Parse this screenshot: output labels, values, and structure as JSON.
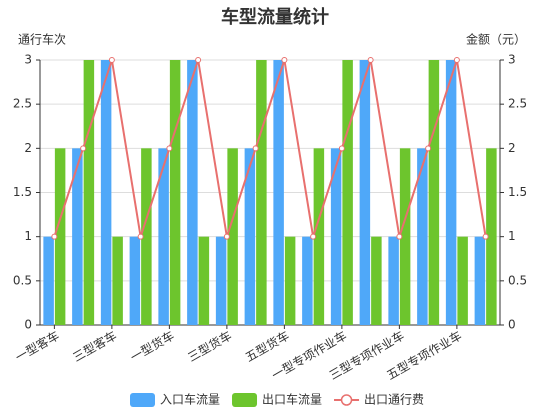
{
  "chart_data": {
    "type": "bar",
    "title": "车型流量统计",
    "y_label": "通行车次",
    "y2_label": "金额（元）",
    "categories": [
      "一型客车",
      null,
      "三型客车",
      null,
      "一型货车",
      null,
      "三型货车",
      null,
      "五型货车",
      null,
      "一型专项作业车",
      null,
      "三型专项作业车",
      null,
      "五型专项作业车",
      null
    ],
    "series": [
      {
        "name": "入口车流量",
        "type": "bar",
        "color": "#4fa8f9",
        "values": [
          1,
          2,
          3,
          1,
          2,
          3,
          1,
          2,
          3,
          1,
          2,
          3,
          1,
          2,
          3,
          1
        ]
      },
      {
        "name": "出口车流量",
        "type": "bar",
        "color": "#6dc52d",
        "values": [
          2,
          3,
          1,
          2,
          3,
          1,
          2,
          3,
          1,
          2,
          3,
          1,
          2,
          3,
          1,
          2
        ]
      },
      {
        "name": "出口通行费",
        "type": "line",
        "axis": "y2",
        "color": "#e8706e",
        "values": [
          1,
          2,
          3,
          1,
          2,
          3,
          1,
          2,
          3,
          1,
          2,
          3,
          1,
          2,
          3,
          1
        ]
      }
    ],
    "ylim": [
      0,
      3
    ],
    "yticks": [
      0,
      0.5,
      1,
      1.5,
      2,
      2.5,
      3
    ],
    "y2lim": [
      0,
      3
    ],
    "y2ticks": [
      0,
      0.5,
      1,
      1.5,
      2,
      2.5,
      3
    ],
    "grid": true,
    "legend": "bottom"
  }
}
